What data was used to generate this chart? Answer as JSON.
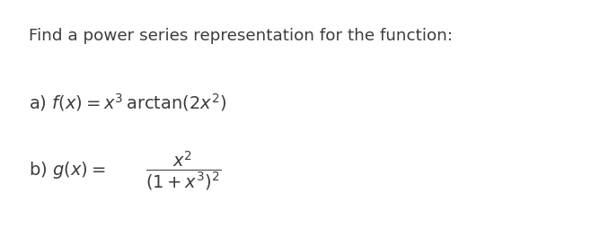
{
  "background_color": "#ffffff",
  "text_color": "#3c3c3c",
  "title_text": "Find a power series representation for the function:",
  "title_fontsize": 13.2,
  "part_a_text": "a) $f(x) = x^3\\,\\mathrm{arctan}(2x^2)$",
  "part_a_fontsize": 14.0,
  "part_b_prefix": "b) $g(x) = $",
  "part_b_frac": "$\\dfrac{x^2}{(1+x^3)^2}$",
  "part_b_fontsize": 14.0,
  "fig_width": 6.58,
  "fig_height": 2.55,
  "dpi": 100
}
